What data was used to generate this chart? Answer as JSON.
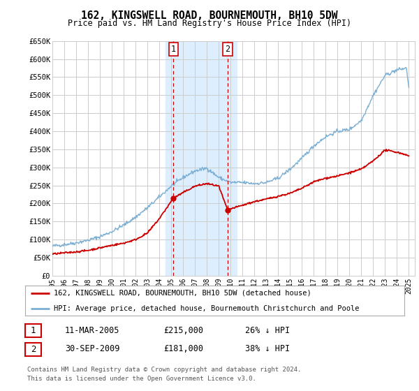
{
  "title": "162, KINGSWELL ROAD, BOURNEMOUTH, BH10 5DW",
  "subtitle": "Price paid vs. HM Land Registry's House Price Index (HPI)",
  "ylim": [
    0,
    650000
  ],
  "yticks": [
    0,
    50000,
    100000,
    150000,
    200000,
    250000,
    300000,
    350000,
    400000,
    450000,
    500000,
    550000,
    600000,
    650000
  ],
  "ytick_labels": [
    "£0",
    "£50K",
    "£100K",
    "£150K",
    "£200K",
    "£250K",
    "£300K",
    "£350K",
    "£400K",
    "£450K",
    "£500K",
    "£550K",
    "£600K",
    "£650K"
  ],
  "xlim_start": 1995.0,
  "xlim_end": 2025.5,
  "background_color": "#ffffff",
  "plot_bg_color": "#ffffff",
  "grid_color": "#cccccc",
  "hpi_color": "#7bafd4",
  "price_color": "#cc0000",
  "transaction1_x": 2005.19,
  "transaction1_y": 215000,
  "transaction2_x": 2009.75,
  "transaction2_y": 181000,
  "shade_x1": 2004.5,
  "shade_x2": 2010.5,
  "shade_color": "#ddeeff",
  "legend_line1": "162, KINGSWELL ROAD, BOURNEMOUTH, BH10 5DW (detached house)",
  "legend_line2": "HPI: Average price, detached house, Bournemouth Christchurch and Poole",
  "table_row1": [
    "1",
    "11-MAR-2005",
    "£215,000",
    "26% ↓ HPI"
  ],
  "table_row2": [
    "2",
    "30-SEP-2009",
    "£181,000",
    "38% ↓ HPI"
  ],
  "footer1": "Contains HM Land Registry data © Crown copyright and database right 2024.",
  "footer2": "This data is licensed under the Open Government Licence v3.0."
}
